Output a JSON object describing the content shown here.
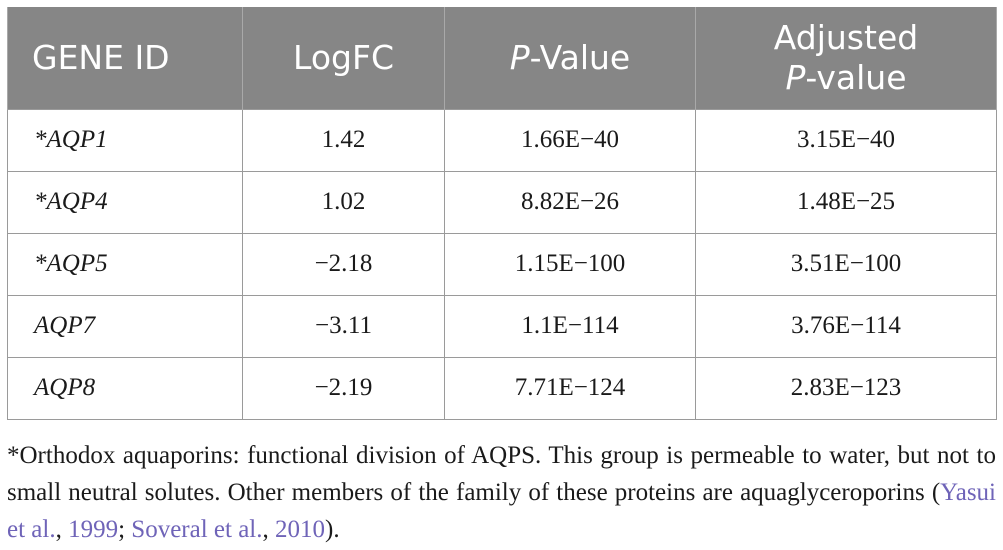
{
  "table": {
    "headers": {
      "gene_id": "GENE ID",
      "logfc": "LogFC",
      "pvalue_italic": "P",
      "pvalue_rest": "-Value",
      "adj_line1": "Adjusted",
      "adj_italic": "P",
      "adj_rest": "-value"
    },
    "rows": [
      {
        "gene": "*AQP1",
        "logfc": "1.42",
        "pvalue": "1.66E−40",
        "adj": "3.15E−40"
      },
      {
        "gene": "*AQP4",
        "logfc": "1.02",
        "pvalue": "8.82E−26",
        "adj": "1.48E−25"
      },
      {
        "gene": "*AQP5",
        "logfc": "−2.18",
        "pvalue": "1.15E−100",
        "adj": "3.51E−100"
      },
      {
        "gene": "AQP7",
        "logfc": "−3.11",
        "pvalue": "1.1E−114",
        "adj": "3.76E−114"
      },
      {
        "gene": "AQP8",
        "logfc": "−2.19",
        "pvalue": "7.71E−124",
        "adj": "2.83E−123"
      }
    ]
  },
  "footnote": {
    "text": "*Orthodox aquaporins: functional division of AQPS. This group is permeable to water, but not to small neutral solutes. Other members of the family of these proteins are aquaglyceroporins (",
    "cite1_author": "Yasui et al.",
    "cite1_sep": ", ",
    "cite1_year": "1999",
    "between": "; ",
    "cite2_author": "Soveral et al.",
    "cite2_sep": ", ",
    "cite2_year": "2010",
    "end": ").",
    "link_color": "#6f64b8"
  }
}
